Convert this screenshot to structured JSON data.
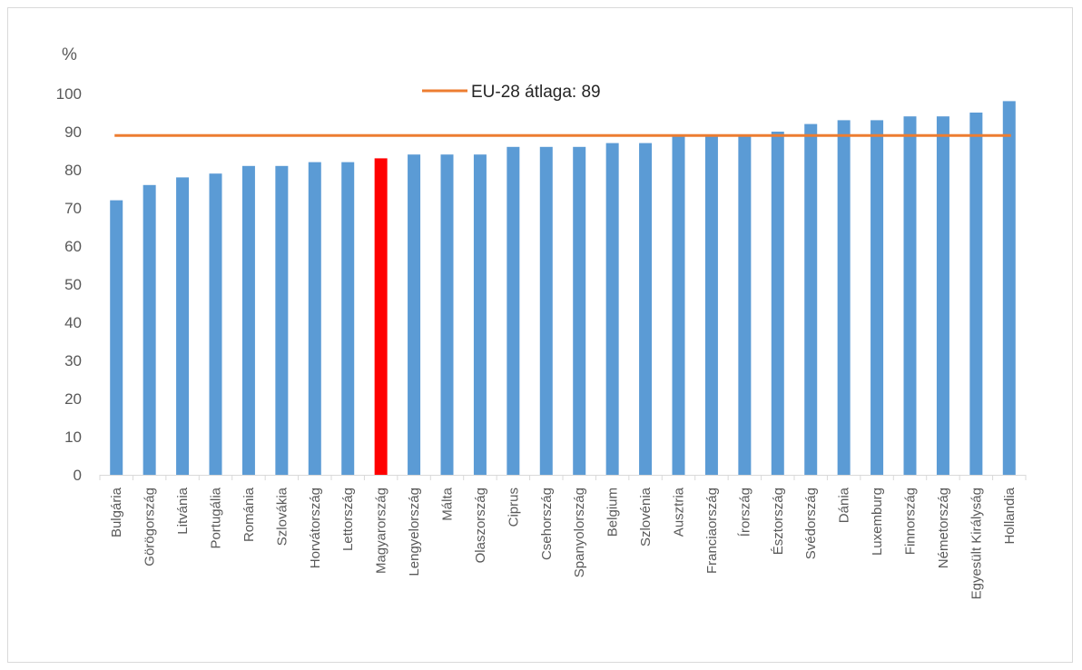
{
  "chart_data": {
    "type": "bar",
    "unit_label": "%",
    "ylim": [
      0,
      100
    ],
    "yticks": [
      0,
      10,
      20,
      30,
      40,
      50,
      60,
      70,
      80,
      90,
      100
    ],
    "grid": false,
    "categories": [
      "Bulgária",
      "Görögország",
      "Litvánia",
      "Portugália",
      "Románia",
      "Szlovákia",
      "Horvátország",
      "Lettország",
      "Magyarország",
      "Lengyelország",
      "Málta",
      "Olaszország",
      "Ciprus",
      "Csehország",
      "Spanyolország",
      "Belgium",
      "Szlovénia",
      "Ausztria",
      "Franciaország",
      "Írország",
      "Észtország",
      "Svédország",
      "Dánia",
      "Luxemburg",
      "Finnország",
      "Németország",
      "Egyesült Királyság",
      "Hollandia"
    ],
    "values": [
      72,
      76,
      78,
      79,
      81,
      81,
      82,
      82,
      83,
      84,
      84,
      84,
      86,
      86,
      86,
      87,
      87,
      89,
      89,
      89,
      90,
      92,
      93,
      93,
      94,
      94,
      95,
      98
    ],
    "highlight_category": "Magyarország",
    "reference_line": {
      "label": "EU-28 átlaga: 89",
      "value": 89
    },
    "legend_position": "top-center",
    "colors": {
      "bar": "#5b9bd5",
      "highlight": "#ff0000",
      "reference": "#ed7d31",
      "axis": "#d9d9d9"
    }
  }
}
